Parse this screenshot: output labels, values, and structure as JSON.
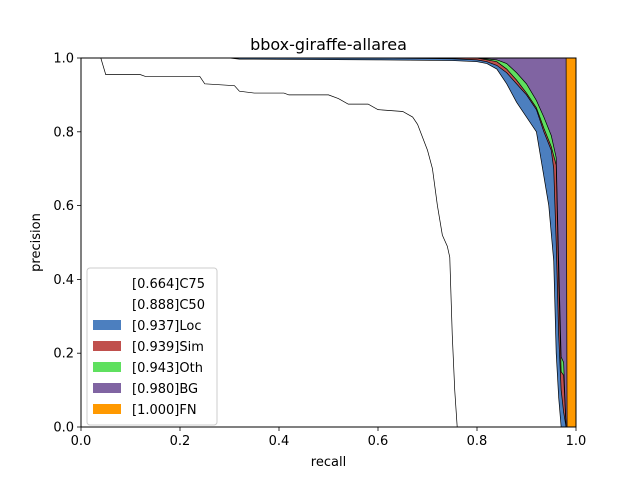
{
  "chart_data": {
    "type": "area",
    "title": "bbox-giraffe-allarea",
    "xlabel": "recall",
    "ylabel": "precision",
    "xlim": [
      0,
      1
    ],
    "ylim": [
      0,
      1
    ],
    "x_ticks": [
      "0.0",
      "0.2",
      "0.4",
      "0.6",
      "0.8",
      "1.0"
    ],
    "y_ticks": [
      "0.0",
      "0.2",
      "0.4",
      "0.6",
      "0.8",
      "1.0"
    ],
    "legend_position": "lower-left",
    "series": [
      {
        "name": "[0.664]C75",
        "color": "#ffffff",
        "points": [
          [
            0,
            1.0
          ],
          [
            0.04,
            1.0
          ],
          [
            0.05,
            0.955
          ],
          [
            0.12,
            0.955
          ],
          [
            0.13,
            0.95
          ],
          [
            0.24,
            0.95
          ],
          [
            0.25,
            0.93
          ],
          [
            0.31,
            0.925
          ],
          [
            0.32,
            0.91
          ],
          [
            0.35,
            0.905
          ],
          [
            0.41,
            0.905
          ],
          [
            0.42,
            0.9
          ],
          [
            0.5,
            0.9
          ],
          [
            0.52,
            0.89
          ],
          [
            0.54,
            0.875
          ],
          [
            0.58,
            0.875
          ],
          [
            0.6,
            0.86
          ],
          [
            0.65,
            0.855
          ],
          [
            0.67,
            0.84
          ],
          [
            0.68,
            0.82
          ],
          [
            0.7,
            0.75
          ],
          [
            0.71,
            0.7
          ],
          [
            0.72,
            0.6
          ],
          [
            0.73,
            0.52
          ],
          [
            0.74,
            0.49
          ],
          [
            0.745,
            0.46
          ],
          [
            0.75,
            0.25
          ],
          [
            0.755,
            0.1
          ],
          [
            0.76,
            0.0
          ]
        ]
      },
      {
        "name": "[0.888]C50",
        "color": "#ffffff",
        "points": [
          [
            0,
            1.0
          ],
          [
            0.3,
            1.0
          ],
          [
            0.32,
            0.997
          ],
          [
            0.6,
            0.995
          ],
          [
            0.75,
            0.993
          ],
          [
            0.8,
            0.99
          ],
          [
            0.82,
            0.985
          ],
          [
            0.84,
            0.97
          ],
          [
            0.86,
            0.93
          ],
          [
            0.88,
            0.88
          ],
          [
            0.9,
            0.84
          ],
          [
            0.92,
            0.8
          ],
          [
            0.93,
            0.72
          ],
          [
            0.945,
            0.6
          ],
          [
            0.955,
            0.45
          ],
          [
            0.96,
            0.2
          ],
          [
            0.965,
            0.08
          ],
          [
            0.97,
            0.0
          ]
        ]
      },
      {
        "name": "[0.937]Loc",
        "color": "#4c7fbf",
        "points": [
          [
            0,
            1.0
          ],
          [
            0.6,
            1.0
          ],
          [
            0.75,
            0.998
          ],
          [
            0.8,
            0.995
          ],
          [
            0.82,
            0.99
          ],
          [
            0.84,
            0.98
          ],
          [
            0.86,
            0.96
          ],
          [
            0.88,
            0.93
          ],
          [
            0.9,
            0.9
          ],
          [
            0.92,
            0.86
          ],
          [
            0.935,
            0.8
          ],
          [
            0.95,
            0.75
          ],
          [
            0.955,
            0.7
          ],
          [
            0.96,
            0.5
          ],
          [
            0.965,
            0.25
          ],
          [
            0.97,
            0.1
          ],
          [
            0.975,
            0.04
          ],
          [
            0.98,
            0.0
          ]
        ]
      },
      {
        "name": "[0.939]Sim",
        "color": "#c0504d",
        "points": [
          [
            0,
            1.0
          ],
          [
            0.8,
            1.0
          ],
          [
            0.84,
            0.99
          ],
          [
            0.86,
            0.97
          ],
          [
            0.88,
            0.94
          ],
          [
            0.9,
            0.905
          ],
          [
            0.92,
            0.865
          ],
          [
            0.935,
            0.81
          ],
          [
            0.95,
            0.76
          ],
          [
            0.96,
            0.71
          ],
          [
            0.965,
            0.4
          ],
          [
            0.97,
            0.15
          ],
          [
            0.975,
            0.14
          ],
          [
            0.98,
            0.0
          ]
        ]
      },
      {
        "name": "[0.943]Oth",
        "color": "#5fe05f",
        "points": [
          [
            0,
            1.0
          ],
          [
            0.8,
            1.0
          ],
          [
            0.84,
            0.995
          ],
          [
            0.86,
            0.985
          ],
          [
            0.88,
            0.96
          ],
          [
            0.9,
            0.93
          ],
          [
            0.92,
            0.885
          ],
          [
            0.935,
            0.84
          ],
          [
            0.95,
            0.79
          ],
          [
            0.96,
            0.73
          ],
          [
            0.965,
            0.45
          ],
          [
            0.97,
            0.19
          ],
          [
            0.975,
            0.175
          ],
          [
            0.98,
            0.0
          ]
        ]
      },
      {
        "name": "[0.980]BG",
        "color": "#8064a2",
        "points": [
          [
            0,
            1.0
          ],
          [
            0.98,
            1.0
          ],
          [
            0.982,
            0.0
          ]
        ]
      },
      {
        "name": "[1.000]FN",
        "color": "#ff9900",
        "points": [
          [
            0,
            1.0
          ],
          [
            1.0,
            1.0
          ],
          [
            1.0,
            0.0
          ]
        ]
      }
    ]
  }
}
